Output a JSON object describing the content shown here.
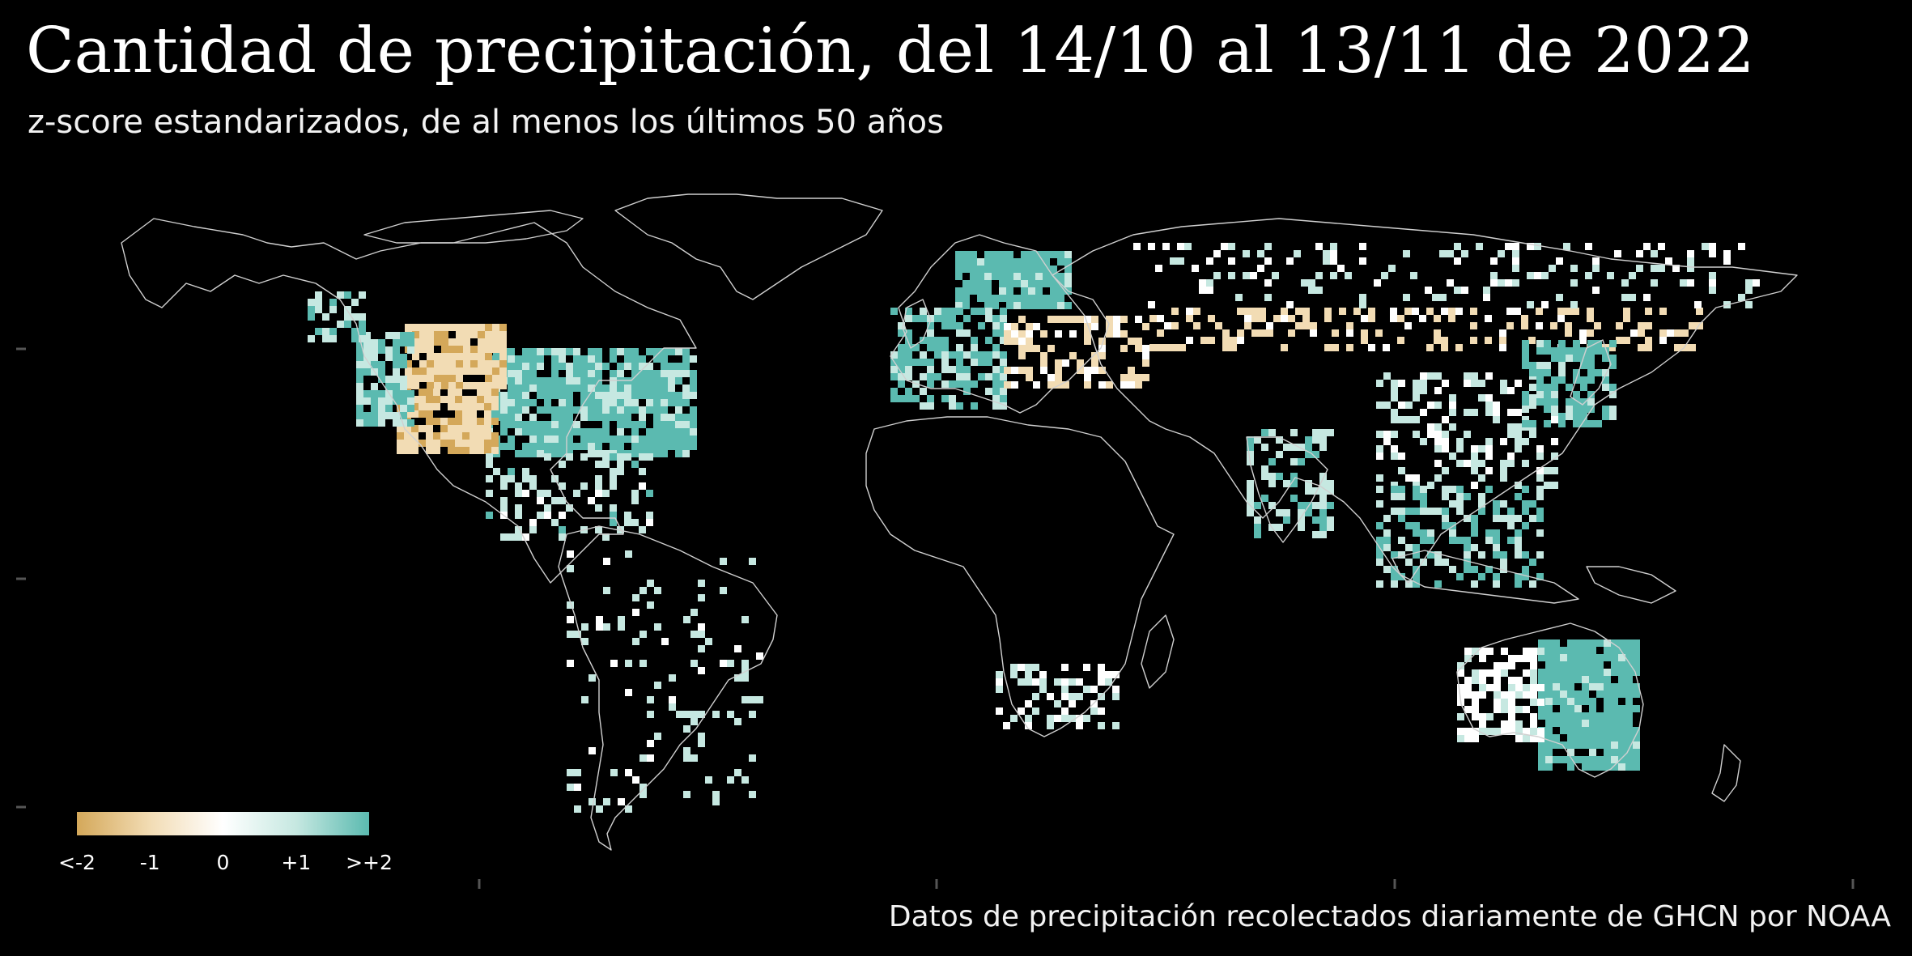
{
  "title": "Cantidad de precipitación, del 14/10 al 13/11 de 2022",
  "subtitle": "z-score estandarizados, de al menos los últimos 50 años",
  "caption": "Datos de precipitación recolectados diariamente de GHCN por NOAA",
  "legend": {
    "labels": [
      "<-2",
      "-1",
      "0",
      "+1",
      ">+2"
    ],
    "values": [
      -2,
      -1,
      0,
      1,
      2
    ]
  },
  "colors": {
    "background": "#000000",
    "dry": "#d4a85a",
    "dry_light": "#f2dcb4",
    "neutral": "#ffffff",
    "wet_light": "#c6e8e1",
    "wet": "#5bbab0",
    "coastline": "#d0d0d0"
  },
  "regions": [
    {
      "name": "usa_east",
      "value": 1.8
    },
    {
      "name": "usa_west_interior",
      "value": -1.2
    },
    {
      "name": "usa_southwest",
      "value": -1.4
    },
    {
      "name": "usa_northwest",
      "value": 1.6
    },
    {
      "name": "alaska",
      "value": 1.3
    },
    {
      "name": "scandinavia",
      "value": 2.0
    },
    {
      "name": "western_europe",
      "value": 1.7
    },
    {
      "name": "eastern_europe",
      "value": -0.8
    },
    {
      "name": "russia_central_band",
      "value": -0.9
    },
    {
      "name": "siberia",
      "value": 0.6
    },
    {
      "name": "east_china",
      "value": 0.7
    },
    {
      "name": "japan",
      "value": 1.9
    },
    {
      "name": "india",
      "value": 1.2
    },
    {
      "name": "southeast_asia",
      "value": 1.6
    },
    {
      "name": "australia_east",
      "value": 2.0
    },
    {
      "name": "australia_west",
      "value": 0.2
    },
    {
      "name": "south_america",
      "value": 0.8
    },
    {
      "name": "southern_africa",
      "value": 0.4
    },
    {
      "name": "central_america",
      "value": 1.0
    }
  ]
}
